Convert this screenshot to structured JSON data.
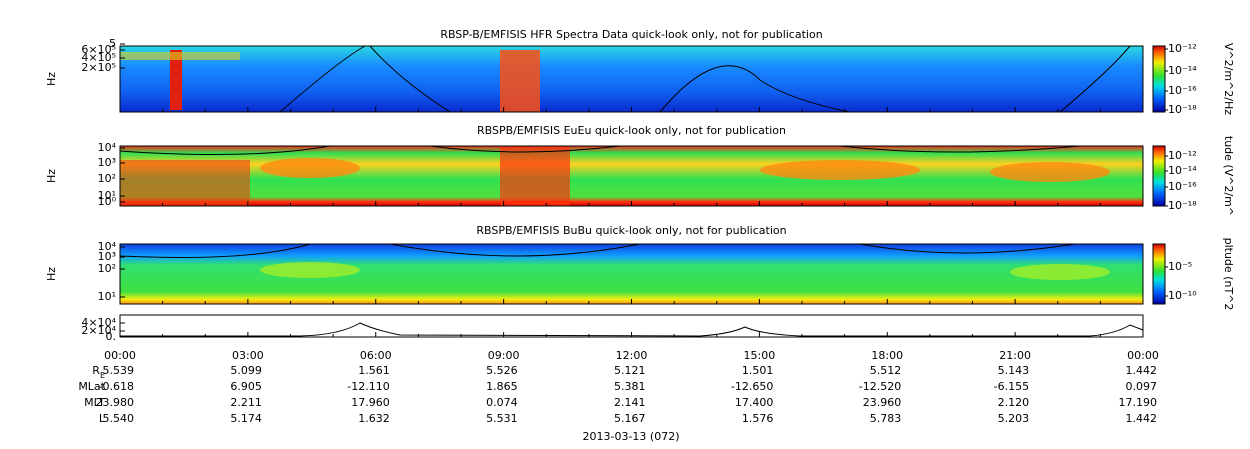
{
  "panels": [
    {
      "title": "RBSP-B/EMFISIS  HFR Spectra Data quick-look only, not for publication",
      "ylabel": "Hz",
      "yticks": [
        "5",
        "6×10⁵",
        "4×10⁵",
        "2×10⁵"
      ],
      "colorbar": {
        "label": "V^2/m^2/Hz",
        "ticks": [
          "10⁻¹²",
          "10⁻¹⁴",
          "10⁻¹⁶",
          "10⁻¹⁸"
        ]
      }
    },
    {
      "title": "RBSPB/EMFISIS  EuEu quick-look only, not for publication",
      "ylabel": "Hz",
      "yticks": [
        "10⁴",
        "10³",
        "10²",
        "10¹",
        "10⁰"
      ],
      "colorbar": {
        "label": "tude (V^2/m^",
        "ticks": [
          "10⁻¹²",
          "10⁻¹⁴",
          "10⁻¹⁶",
          "10⁻¹⁸"
        ]
      }
    },
    {
      "title": "RBSPB/EMFISIS  BuBu quick-look only, not for publication",
      "ylabel": "Hz",
      "yticks": [
        "10⁴",
        "10³",
        "10²",
        "10¹"
      ],
      "colorbar": {
        "label": "pltude (nT^2",
        "ticks": [
          "10⁻⁵",
          "10⁻¹⁰"
        ]
      }
    },
    {
      "yticks": [
        "4×10⁴",
        "2×10⁴",
        "0."
      ]
    }
  ],
  "time_ticks": [
    "00:00",
    "03:00",
    "06:00",
    "09:00",
    "12:00",
    "15:00",
    "18:00",
    "21:00",
    "00:00"
  ],
  "ephemeris": [
    {
      "label": "R",
      "subscript": "E",
      "values": [
        "5.539",
        "5.099",
        "1.561",
        "5.526",
        "5.121",
        "1.501",
        "5.512",
        "5.143",
        "1.442"
      ]
    },
    {
      "label": "MLat",
      "values": [
        "-0.618",
        "6.905",
        "-12.110",
        "1.865",
        "5.381",
        "-12.650",
        "-12.520",
        "-6.155",
        "0.097"
      ]
    },
    {
      "label": "MLT",
      "values": [
        "23.980",
        "2.211",
        "17.960",
        "0.074",
        "2.141",
        "17.400",
        "23.960",
        "2.120",
        "17.190"
      ]
    },
    {
      "label": "L",
      "values": [
        "5.540",
        "5.174",
        "1.632",
        "5.531",
        "5.167",
        "1.576",
        "5.783",
        "5.203",
        "1.442"
      ]
    }
  ],
  "date": "2013-03-13 (072)"
}
